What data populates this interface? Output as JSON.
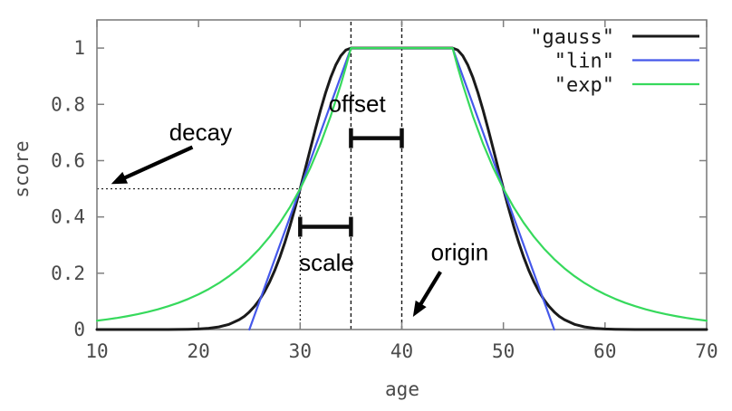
{
  "chart_data": {
    "type": "line",
    "title": "",
    "xlabel": "age",
    "ylabel": "score",
    "xlim": [
      10,
      70
    ],
    "ylim": [
      0,
      1.1
    ],
    "grid": false,
    "legend_position": "top-right-inside",
    "xticks": {
      "values": [
        10,
        20,
        30,
        40,
        50,
        60,
        70
      ],
      "labels": [
        "10",
        "20",
        "30",
        "40",
        "50",
        "60",
        "70"
      ]
    },
    "yticks": {
      "values": [
        0,
        0.2,
        0.4,
        0.6,
        0.8,
        1
      ],
      "labels": [
        "0",
        "0.2",
        "0.4",
        "0.6",
        "0.8",
        "1"
      ]
    },
    "decay_params": {
      "origin": 40,
      "offset": 5,
      "scale": 5,
      "decay": 0.5
    },
    "series": [
      {
        "name": "\"gauss\"",
        "color": "#1a1a1a",
        "width": 3,
        "points": [
          [
            10,
            0
          ],
          [
            12,
            0
          ],
          [
            14,
            0
          ],
          [
            16,
            0
          ],
          [
            17,
            0.0001
          ],
          [
            18,
            0.0003
          ],
          [
            19,
            0.0008
          ],
          [
            20,
            0.002
          ],
          [
            21,
            0.0044
          ],
          [
            22,
            0.0092
          ],
          [
            23,
            0.0184
          ],
          [
            24,
            0.0349
          ],
          [
            24.5,
            0.0466
          ],
          [
            25,
            0.0625
          ],
          [
            25.5,
            0.0819
          ],
          [
            26,
            0.1058
          ],
          [
            26.5,
            0.1349
          ],
          [
            27,
            0.1696
          ],
          [
            27.5,
            0.2102
          ],
          [
            28,
            0.257
          ],
          [
            28.5,
            0.3101
          ],
          [
            29,
            0.3686
          ],
          [
            29.5,
            0.4323
          ],
          [
            30,
            0.5
          ],
          [
            30.5,
            0.5705
          ],
          [
            31,
            0.6417
          ],
          [
            31.5,
            0.712
          ],
          [
            32,
            0.7792
          ],
          [
            32.5,
            0.8409
          ],
          [
            33,
            0.895
          ],
          [
            33.5,
            0.9395
          ],
          [
            34,
            0.9727
          ],
          [
            34.5,
            0.9931
          ],
          [
            35,
            1
          ],
          [
            45,
            1
          ],
          [
            45.5,
            0.9931
          ],
          [
            46,
            0.9727
          ],
          [
            46.5,
            0.9395
          ],
          [
            47,
            0.895
          ],
          [
            47.5,
            0.8409
          ],
          [
            48,
            0.7792
          ],
          [
            48.5,
            0.712
          ],
          [
            49,
            0.6417
          ],
          [
            49.5,
            0.5705
          ],
          [
            50,
            0.5
          ],
          [
            50.5,
            0.4323
          ],
          [
            51,
            0.3686
          ],
          [
            51.5,
            0.3101
          ],
          [
            52,
            0.257
          ],
          [
            52.5,
            0.2102
          ],
          [
            53,
            0.1696
          ],
          [
            53.5,
            0.1349
          ],
          [
            54,
            0.1058
          ],
          [
            54.5,
            0.0819
          ],
          [
            55,
            0.0625
          ],
          [
            55.5,
            0.0466
          ],
          [
            56,
            0.0349
          ],
          [
            57,
            0.0184
          ],
          [
            58,
            0.0092
          ],
          [
            59,
            0.0044
          ],
          [
            60,
            0.002
          ],
          [
            61,
            0.0008
          ],
          [
            62,
            0.0003
          ],
          [
            63,
            0.0001
          ],
          [
            64,
            0
          ],
          [
            66,
            0
          ],
          [
            68,
            0
          ],
          [
            70,
            0
          ]
        ]
      },
      {
        "name": "\"lin\"",
        "color": "#4558ea",
        "width": 2.2,
        "points": [
          [
            25,
            0
          ],
          [
            35,
            1
          ],
          [
            45,
            1
          ],
          [
            55,
            0
          ]
        ]
      },
      {
        "name": "\"exp\"",
        "color": "#36d95c",
        "width": 2.2,
        "points": [
          [
            10,
            0.0313
          ],
          [
            11,
            0.0359
          ],
          [
            12,
            0.0412
          ],
          [
            13,
            0.0474
          ],
          [
            14,
            0.0544
          ],
          [
            15,
            0.0625
          ],
          [
            16,
            0.0718
          ],
          [
            17,
            0.0825
          ],
          [
            18,
            0.0947
          ],
          [
            19,
            0.1088
          ],
          [
            20,
            0.125
          ],
          [
            21,
            0.1436
          ],
          [
            22,
            0.1649
          ],
          [
            23,
            0.1895
          ],
          [
            24,
            0.2176
          ],
          [
            25,
            0.25
          ],
          [
            26,
            0.2872
          ],
          [
            27,
            0.3299
          ],
          [
            28,
            0.3789
          ],
          [
            29,
            0.4353
          ],
          [
            30,
            0.5
          ],
          [
            31,
            0.5743
          ],
          [
            32,
            0.6598
          ],
          [
            33,
            0.7579
          ],
          [
            34,
            0.8706
          ],
          [
            34.5,
            0.933
          ],
          [
            35,
            1
          ],
          [
            45,
            1
          ],
          [
            45.5,
            0.933
          ],
          [
            46,
            0.8706
          ],
          [
            47,
            0.7579
          ],
          [
            48,
            0.6598
          ],
          [
            49,
            0.5743
          ],
          [
            50,
            0.5
          ],
          [
            51,
            0.4353
          ],
          [
            52,
            0.3789
          ],
          [
            53,
            0.3299
          ],
          [
            54,
            0.2872
          ],
          [
            55,
            0.25
          ],
          [
            56,
            0.2176
          ],
          [
            57,
            0.1895
          ],
          [
            58,
            0.1649
          ],
          [
            59,
            0.1436
          ],
          [
            60,
            0.125
          ],
          [
            61,
            0.1088
          ],
          [
            62,
            0.0947
          ],
          [
            63,
            0.0825
          ],
          [
            64,
            0.0718
          ],
          [
            65,
            0.0625
          ],
          [
            66,
            0.0544
          ],
          [
            67,
            0.0474
          ],
          [
            68,
            0.0412
          ],
          [
            69,
            0.0359
          ],
          [
            70,
            0.0313
          ]
        ]
      }
    ],
    "guides": [
      {
        "name": "decay-level-line",
        "from": [
          10,
          0.5
        ],
        "to": [
          30,
          0.5
        ],
        "dash": "2,3",
        "width": 1.2
      },
      {
        "name": "scale-left-line",
        "from": [
          30,
          0
        ],
        "to": [
          30,
          0.5
        ],
        "dash": "2,3",
        "width": 1.2
      },
      {
        "name": "offset-left-line",
        "from": [
          35,
          0
        ],
        "to": [
          35,
          1.1
        ],
        "dash": "4,3",
        "width": 1.4
      },
      {
        "name": "origin-line",
        "from": [
          40,
          0
        ],
        "to": [
          40,
          1.1
        ],
        "dash": "4,3",
        "width": 1.4
      }
    ],
    "brackets": [
      {
        "label": "scale",
        "x1": 30,
        "x2": 35,
        "y": 0.365,
        "label_pos": [
          32.6,
          0.231
        ]
      },
      {
        "label": "offset",
        "x1": 35,
        "x2": 40,
        "y": 0.68,
        "label_pos": [
          35.6,
          0.795
        ]
      }
    ],
    "arrows": [
      {
        "label": "decay",
        "label_pos": [
          20.2,
          0.695
        ],
        "tail": [
          19.4,
          0.648
        ],
        "tip": [
          11.4,
          0.517
        ]
      },
      {
        "label": "origin",
        "label_pos": [
          45.7,
          0.268
        ],
        "tail": [
          43.8,
          0.205
        ],
        "tip": [
          41.1,
          0.045
        ]
      }
    ],
    "colors": {
      "frame": "#7f7f7f",
      "tick_label": "#4a4a4a",
      "annotation": "#000000"
    }
  }
}
